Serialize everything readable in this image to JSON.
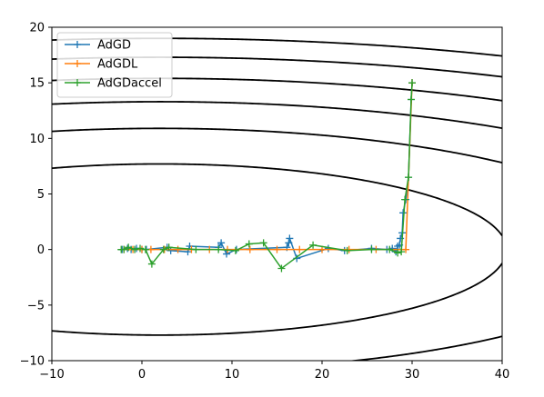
{
  "chart_data": {
    "type": "line",
    "xlim": [
      -10,
      40
    ],
    "ylim": [
      -10,
      20
    ],
    "x_ticks": [
      -10,
      0,
      10,
      20,
      30,
      40
    ],
    "y_ticks": [
      -10,
      -5,
      0,
      5,
      10,
      15,
      20
    ],
    "grid": false,
    "legend_position": "top-left",
    "contours": {
      "color": "#000000",
      "center": [
        2,
        0
      ],
      "axis_ratio": 0.2,
      "levels": [
        7.7,
        10.9,
        13.3,
        15.4,
        17.3,
        19.0
      ],
      "neg_levels": [
        7.7,
        10.9
      ]
    },
    "series": [
      {
        "name": "AdGD",
        "color": "#1f77b4",
        "marker": "+",
        "points": [
          [
            30,
            15
          ],
          [
            29.9,
            13.5
          ],
          [
            29.6,
            6.5
          ],
          [
            29.3,
            4.5
          ],
          [
            29.0,
            3.3
          ],
          [
            28.9,
            1.5
          ],
          [
            28.7,
            1.0
          ],
          [
            28.6,
            0.4
          ],
          [
            28.4,
            0.3
          ],
          [
            28.2,
            -0.2
          ],
          [
            27.8,
            0.1
          ],
          [
            27.2,
            0.0
          ],
          [
            25.5,
            0.1
          ],
          [
            22.5,
            -0.1
          ],
          [
            20.7,
            0.1
          ],
          [
            17.2,
            -0.8
          ],
          [
            16.4,
            1.0
          ],
          [
            16.3,
            0.6
          ],
          [
            16.1,
            0.2
          ],
          [
            10.5,
            0.0
          ],
          [
            9.4,
            -0.4
          ],
          [
            8.8,
            0.6
          ],
          [
            8.5,
            0.2
          ],
          [
            5.3,
            0.3
          ],
          [
            5.1,
            -0.2
          ],
          [
            3.2,
            -0.1
          ],
          [
            2.8,
            0.2
          ],
          [
            0.5,
            0.0
          ],
          [
            0.0,
            0.0
          ],
          [
            -0.6,
            0.1
          ],
          [
            -1.2,
            0.0
          ],
          [
            -1.6,
            0.1
          ],
          [
            -2.2,
            0.0
          ]
        ]
      },
      {
        "name": "AdGDL",
        "color": "#ff7f0e",
        "marker": "+",
        "points": [
          [
            30,
            15
          ],
          [
            29.3,
            0.0
          ],
          [
            26,
            0.0
          ],
          [
            23,
            0.0
          ],
          [
            20,
            0.0
          ],
          [
            17.5,
            0.0
          ],
          [
            15,
            0.0
          ],
          [
            12,
            0.0
          ],
          [
            9.5,
            0.0
          ],
          [
            7.5,
            0.0
          ],
          [
            5.5,
            0.0
          ],
          [
            4,
            0.0
          ],
          [
            2.5,
            0.0
          ],
          [
            1,
            0.0
          ],
          [
            0,
            0.0
          ],
          [
            -1,
            0.0
          ],
          [
            -2,
            0.0
          ]
        ]
      },
      {
        "name": "AdGDaccel",
        "color": "#2ca02c",
        "marker": "+",
        "points": [
          [
            30,
            15
          ],
          [
            29.9,
            13.5
          ],
          [
            29.6,
            6.5
          ],
          [
            29.2,
            4.5
          ],
          [
            28.8,
            -0.2
          ],
          [
            28.4,
            -0.3
          ],
          [
            27.5,
            0.0
          ],
          [
            25.5,
            0.0
          ],
          [
            22.8,
            -0.1
          ],
          [
            19,
            0.4
          ],
          [
            15.5,
            -1.7
          ],
          [
            13.5,
            0.6
          ],
          [
            11.9,
            0.5
          ],
          [
            10.4,
            -0.1
          ],
          [
            8.5,
            0.0
          ],
          [
            6,
            0.0
          ],
          [
            3.0,
            0.2
          ],
          [
            2.4,
            0.0
          ],
          [
            1.1,
            -1.3
          ],
          [
            0.4,
            0.0
          ],
          [
            -0.2,
            0.1
          ],
          [
            -0.8,
            0.0
          ],
          [
            -1.5,
            0.2
          ],
          [
            -2.0,
            0.0
          ],
          [
            -2.3,
            0.0
          ]
        ]
      }
    ]
  }
}
